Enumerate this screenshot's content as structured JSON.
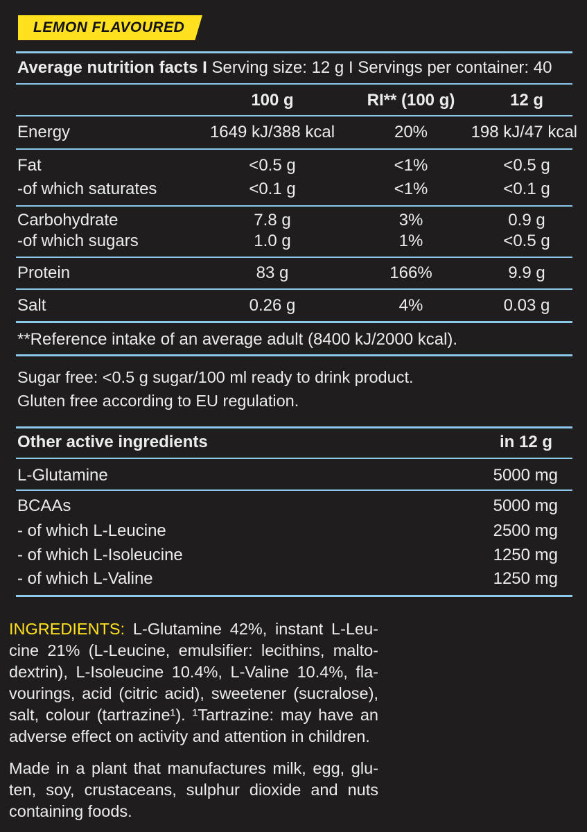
{
  "badge": "LEMON FLAVOURED",
  "nutrition": {
    "title_bold": "Average nutrition facts I",
    "title_rest": " Serving size: 12 g I Servings per container: 40",
    "headers": [
      "100 g",
      "RI** (100 g)",
      "12 g"
    ],
    "rows": [
      {
        "label": "Energy",
        "v100": "1649 kJ/388 kcal",
        "ri": "20%",
        "v12": "198 kJ/47 kcal"
      },
      {
        "label": "Fat",
        "v100": "<0.5 g",
        "ri": "<1%",
        "v12": "<0.5 g"
      },
      {
        "label": "-of which saturates",
        "v100": "<0.1 g",
        "ri": "<1%",
        "v12": "<0.1 g"
      },
      {
        "label": "Carbohydrate",
        "v100": "7.8 g",
        "ri": "3%",
        "v12": "0.9 g"
      },
      {
        "label": "-of which sugars",
        "v100": "1.0 g",
        "ri": "1%",
        "v12": "<0.5 g"
      },
      {
        "label": "Protein",
        "v100": "83 g",
        "ri": "166%",
        "v12": "9.9 g"
      },
      {
        "label": "Salt",
        "v100": "0.26 g",
        "ri": "4%",
        "v12": "0.03 g"
      }
    ],
    "footnote": "**Reference intake of an average adult (8400 kJ/2000 kcal)."
  },
  "claims": [
    "Sugar free: <0.5 g sugar/100 ml ready to drink product.",
    "Gluten free according to EU regulation."
  ],
  "active": {
    "title": "Other active ingredients",
    "unit_header": "in 12 g",
    "rows": [
      {
        "label": "L-Glutamine",
        "value": "5000 mg"
      },
      {
        "label": "BCAAs",
        "value": "5000 mg"
      },
      {
        "label": "- of which L-Leucine",
        "value": "2500 mg"
      },
      {
        "label": "- of which L-Isoleucine",
        "value": "1250 mg"
      },
      {
        "label": "- of which L-Valine",
        "value": "1250 mg"
      }
    ]
  },
  "ingredients": {
    "label": "INGREDIENTS:",
    "text": " L-Glutamine 42%, instant L-Leu­cine 21% (L-Leucine, emulsifier: lecithins, malto­dextrin), L-Isoleucine 10.4%, L-Valine 10.4%, fla­vourings, acid (citric acid), sweetener (sucralose), salt, colour (tartrazine¹). ¹Tartrazine: may have an adverse effect on activity and attention in children."
  },
  "allergen_note": "Made in a plant that manufactures milk, egg, glu­ten, soy, crustaceans, sulphur dioxide and nuts containing foods.",
  "colors": {
    "background": "#1f1d1e",
    "rule": "#8dc9ec",
    "accent": "#ffe11f"
  }
}
